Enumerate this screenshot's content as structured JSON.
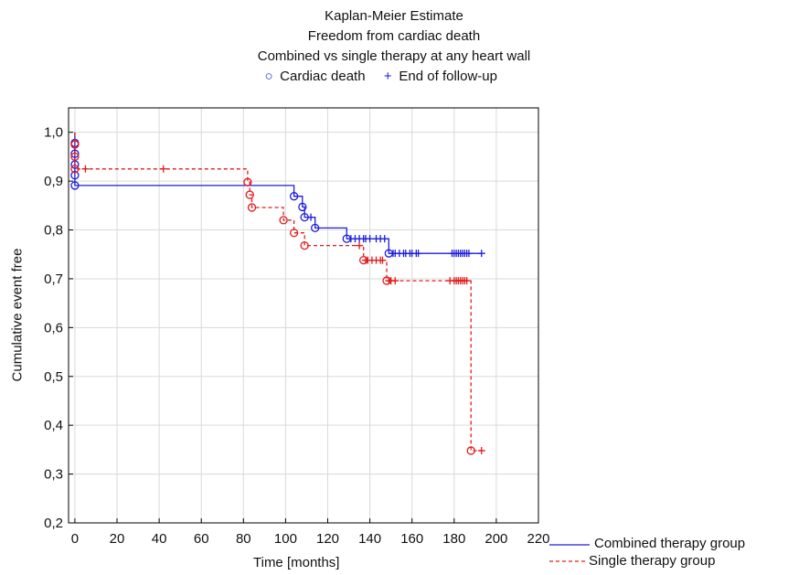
{
  "chart_data": {
    "type": "line",
    "title_lines": [
      "Kaplan-Meier Estimate",
      "Freedom from cardiac death",
      "Combined vs single therapy at any heart wall"
    ],
    "marker_legend": [
      {
        "symbol": "○",
        "label": "Cardiac death"
      },
      {
        "symbol": "+",
        "label": "End of follow-up"
      }
    ],
    "xlabel": "Time [months]",
    "ylabel": "Cumulative event free",
    "xlim": [
      -3,
      220
    ],
    "ylim": [
      0.2,
      1.05
    ],
    "xticks": [
      0,
      20,
      40,
      60,
      80,
      100,
      120,
      140,
      160,
      180,
      200,
      220
    ],
    "yticks": [
      0.2,
      0.3,
      0.4,
      0.5,
      0.6,
      0.7,
      0.8,
      0.9,
      1.0
    ],
    "xtick_labels": [
      "0",
      "20",
      "40",
      "60",
      "80",
      "100",
      "120",
      "140",
      "160",
      "180",
      "200",
      "220"
    ],
    "ytick_labels": [
      "0,2",
      "0,3",
      "0,4",
      "0,5",
      "0,6",
      "0,7",
      "0,8",
      "0,9",
      "1,0"
    ],
    "grid": true,
    "legend_position": "bottom-right outside",
    "series": [
      {
        "name": "Combined therapy group",
        "color": "#1c1cdc",
        "line_style": "solid",
        "step_points": [
          [
            0,
            1.0
          ],
          [
            0,
            0.978
          ],
          [
            0,
            0.956
          ],
          [
            0,
            0.934
          ],
          [
            0,
            0.912
          ],
          [
            0,
            0.891
          ],
          [
            104,
            0.891
          ],
          [
            104,
            0.869
          ],
          [
            108,
            0.869
          ],
          [
            108,
            0.847
          ],
          [
            109,
            0.847
          ],
          [
            109,
            0.826
          ],
          [
            114,
            0.826
          ],
          [
            114,
            0.804
          ],
          [
            129,
            0.804
          ],
          [
            129,
            0.782
          ],
          [
            149,
            0.782
          ],
          [
            149,
            0.752
          ],
          [
            193,
            0.752
          ]
        ],
        "events": [
          [
            0,
            0.978
          ],
          [
            0,
            0.956
          ],
          [
            0,
            0.934
          ],
          [
            0,
            0.912
          ],
          [
            0,
            0.891
          ],
          [
            104,
            0.869
          ],
          [
            108,
            0.847
          ],
          [
            109,
            0.826
          ],
          [
            114,
            0.804
          ],
          [
            129,
            0.782
          ],
          [
            149,
            0.752
          ]
        ],
        "censored": [
          [
            112,
            0.826
          ],
          [
            131,
            0.782
          ],
          [
            133,
            0.782
          ],
          [
            135,
            0.782
          ],
          [
            137,
            0.782
          ],
          [
            138,
            0.782
          ],
          [
            140,
            0.782
          ],
          [
            143,
            0.782
          ],
          [
            145,
            0.782
          ],
          [
            147,
            0.782
          ],
          [
            151,
            0.752
          ],
          [
            152,
            0.752
          ],
          [
            154,
            0.752
          ],
          [
            156,
            0.752
          ],
          [
            157,
            0.752
          ],
          [
            159,
            0.752
          ],
          [
            160,
            0.752
          ],
          [
            162,
            0.752
          ],
          [
            163,
            0.752
          ],
          [
            179,
            0.752
          ],
          [
            180,
            0.752
          ],
          [
            181,
            0.752
          ],
          [
            182,
            0.752
          ],
          [
            183,
            0.752
          ],
          [
            184,
            0.752
          ],
          [
            185,
            0.752
          ],
          [
            186,
            0.752
          ],
          [
            187,
            0.752
          ],
          [
            193,
            0.752
          ]
        ]
      },
      {
        "name": "Single therapy group",
        "color": "#e41a1a",
        "line_style": "dashed",
        "step_points": [
          [
            0,
            1.0
          ],
          [
            0,
            0.975
          ],
          [
            0,
            0.95
          ],
          [
            0,
            0.925
          ],
          [
            82,
            0.925
          ],
          [
            82,
            0.898
          ],
          [
            83,
            0.898
          ],
          [
            83,
            0.872
          ],
          [
            84,
            0.872
          ],
          [
            84,
            0.846
          ],
          [
            99,
            0.846
          ],
          [
            99,
            0.82
          ],
          [
            104,
            0.82
          ],
          [
            104,
            0.794
          ],
          [
            109,
            0.794
          ],
          [
            109,
            0.768
          ],
          [
            137,
            0.768
          ],
          [
            137,
            0.738
          ],
          [
            148,
            0.738
          ],
          [
            148,
            0.696
          ],
          [
            188,
            0.696
          ],
          [
            188,
            0.348
          ],
          [
            193,
            0.348
          ]
        ],
        "events": [
          [
            0,
            0.975
          ],
          [
            0,
            0.95
          ],
          [
            0,
            0.925
          ],
          [
            82,
            0.898
          ],
          [
            83,
            0.872
          ],
          [
            84,
            0.846
          ],
          [
            99,
            0.82
          ],
          [
            104,
            0.794
          ],
          [
            109,
            0.768
          ],
          [
            137,
            0.738
          ],
          [
            148,
            0.696
          ],
          [
            188,
            0.348
          ]
        ],
        "censored": [
          [
            5,
            0.925
          ],
          [
            42,
            0.925
          ],
          [
            135,
            0.768
          ],
          [
            138,
            0.738
          ],
          [
            139,
            0.738
          ],
          [
            141,
            0.738
          ],
          [
            143,
            0.738
          ],
          [
            145,
            0.738
          ],
          [
            146,
            0.738
          ],
          [
            149,
            0.696
          ],
          [
            150,
            0.696
          ],
          [
            152,
            0.696
          ],
          [
            178,
            0.696
          ],
          [
            180,
            0.696
          ],
          [
            181,
            0.696
          ],
          [
            182,
            0.696
          ],
          [
            183,
            0.696
          ],
          [
            184,
            0.696
          ],
          [
            185,
            0.696
          ],
          [
            186,
            0.696
          ],
          [
            193,
            0.348
          ]
        ]
      }
    ]
  }
}
